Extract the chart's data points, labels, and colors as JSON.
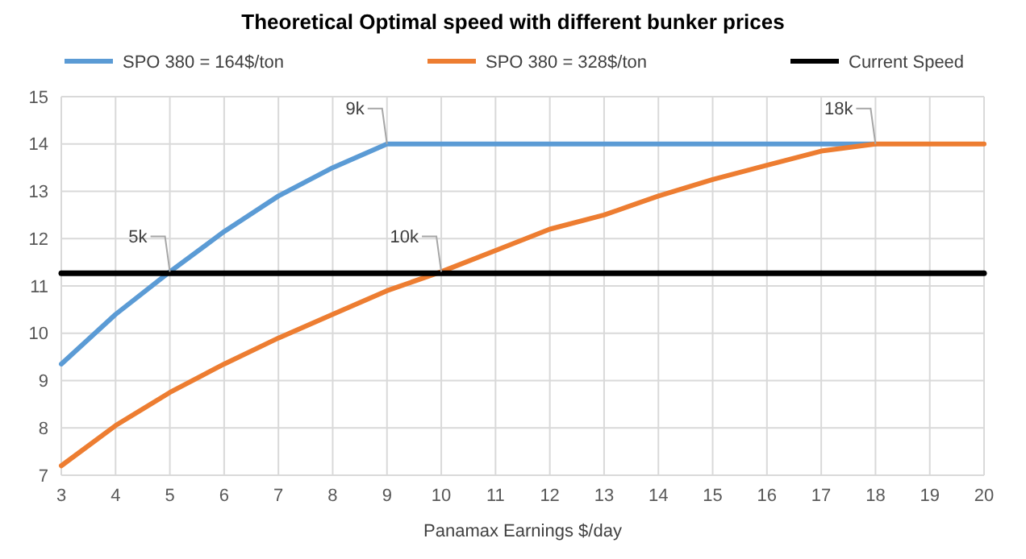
{
  "chart_data": {
    "type": "line",
    "title": "Theoretical Optimal speed with different bunker prices",
    "xlabel": "Panamax Earnings $/day",
    "x": [
      3,
      4,
      5,
      6,
      7,
      8,
      9,
      10,
      11,
      12,
      13,
      14,
      15,
      16,
      17,
      18,
      19,
      20
    ],
    "series": [
      {
        "name": "SPO 380 = 164$/ton",
        "color": "#5b9bd5",
        "values": [
          9.35,
          10.4,
          11.3,
          12.15,
          12.9,
          13.5,
          14,
          14,
          14,
          14,
          14,
          14,
          14,
          14,
          14,
          14,
          null,
          null
        ]
      },
      {
        "name": "SPO 380 = 328$/ton",
        "color": "#ed7d31",
        "values": [
          7.2,
          8.05,
          8.75,
          9.35,
          9.9,
          10.4,
          10.9,
          11.3,
          11.75,
          12.2,
          12.5,
          12.9,
          13.25,
          13.55,
          13.85,
          14,
          14,
          14
        ]
      },
      {
        "name": "Current Speed",
        "color": "#000000",
        "x": [
          3,
          20
        ],
        "values": [
          11.27,
          11.27
        ]
      }
    ],
    "annotations": [
      {
        "text": "5k",
        "x": 5,
        "y": 11.3
      },
      {
        "text": "9k",
        "x": 9,
        "y": 14
      },
      {
        "text": "10k",
        "x": 10,
        "y": 11.3
      },
      {
        "text": "18k",
        "x": 18,
        "y": 14
      }
    ],
    "xlim": [
      3,
      20
    ],
    "xticks": [
      3,
      4,
      5,
      6,
      7,
      8,
      9,
      10,
      11,
      12,
      13,
      14,
      15,
      16,
      17,
      18,
      19,
      20
    ],
    "ylim": [
      7,
      15
    ],
    "yticks": [
      7,
      8,
      9,
      10,
      11,
      12,
      13,
      14,
      15
    ],
    "grid": true,
    "legend": "top",
    "line_style": "solid"
  }
}
